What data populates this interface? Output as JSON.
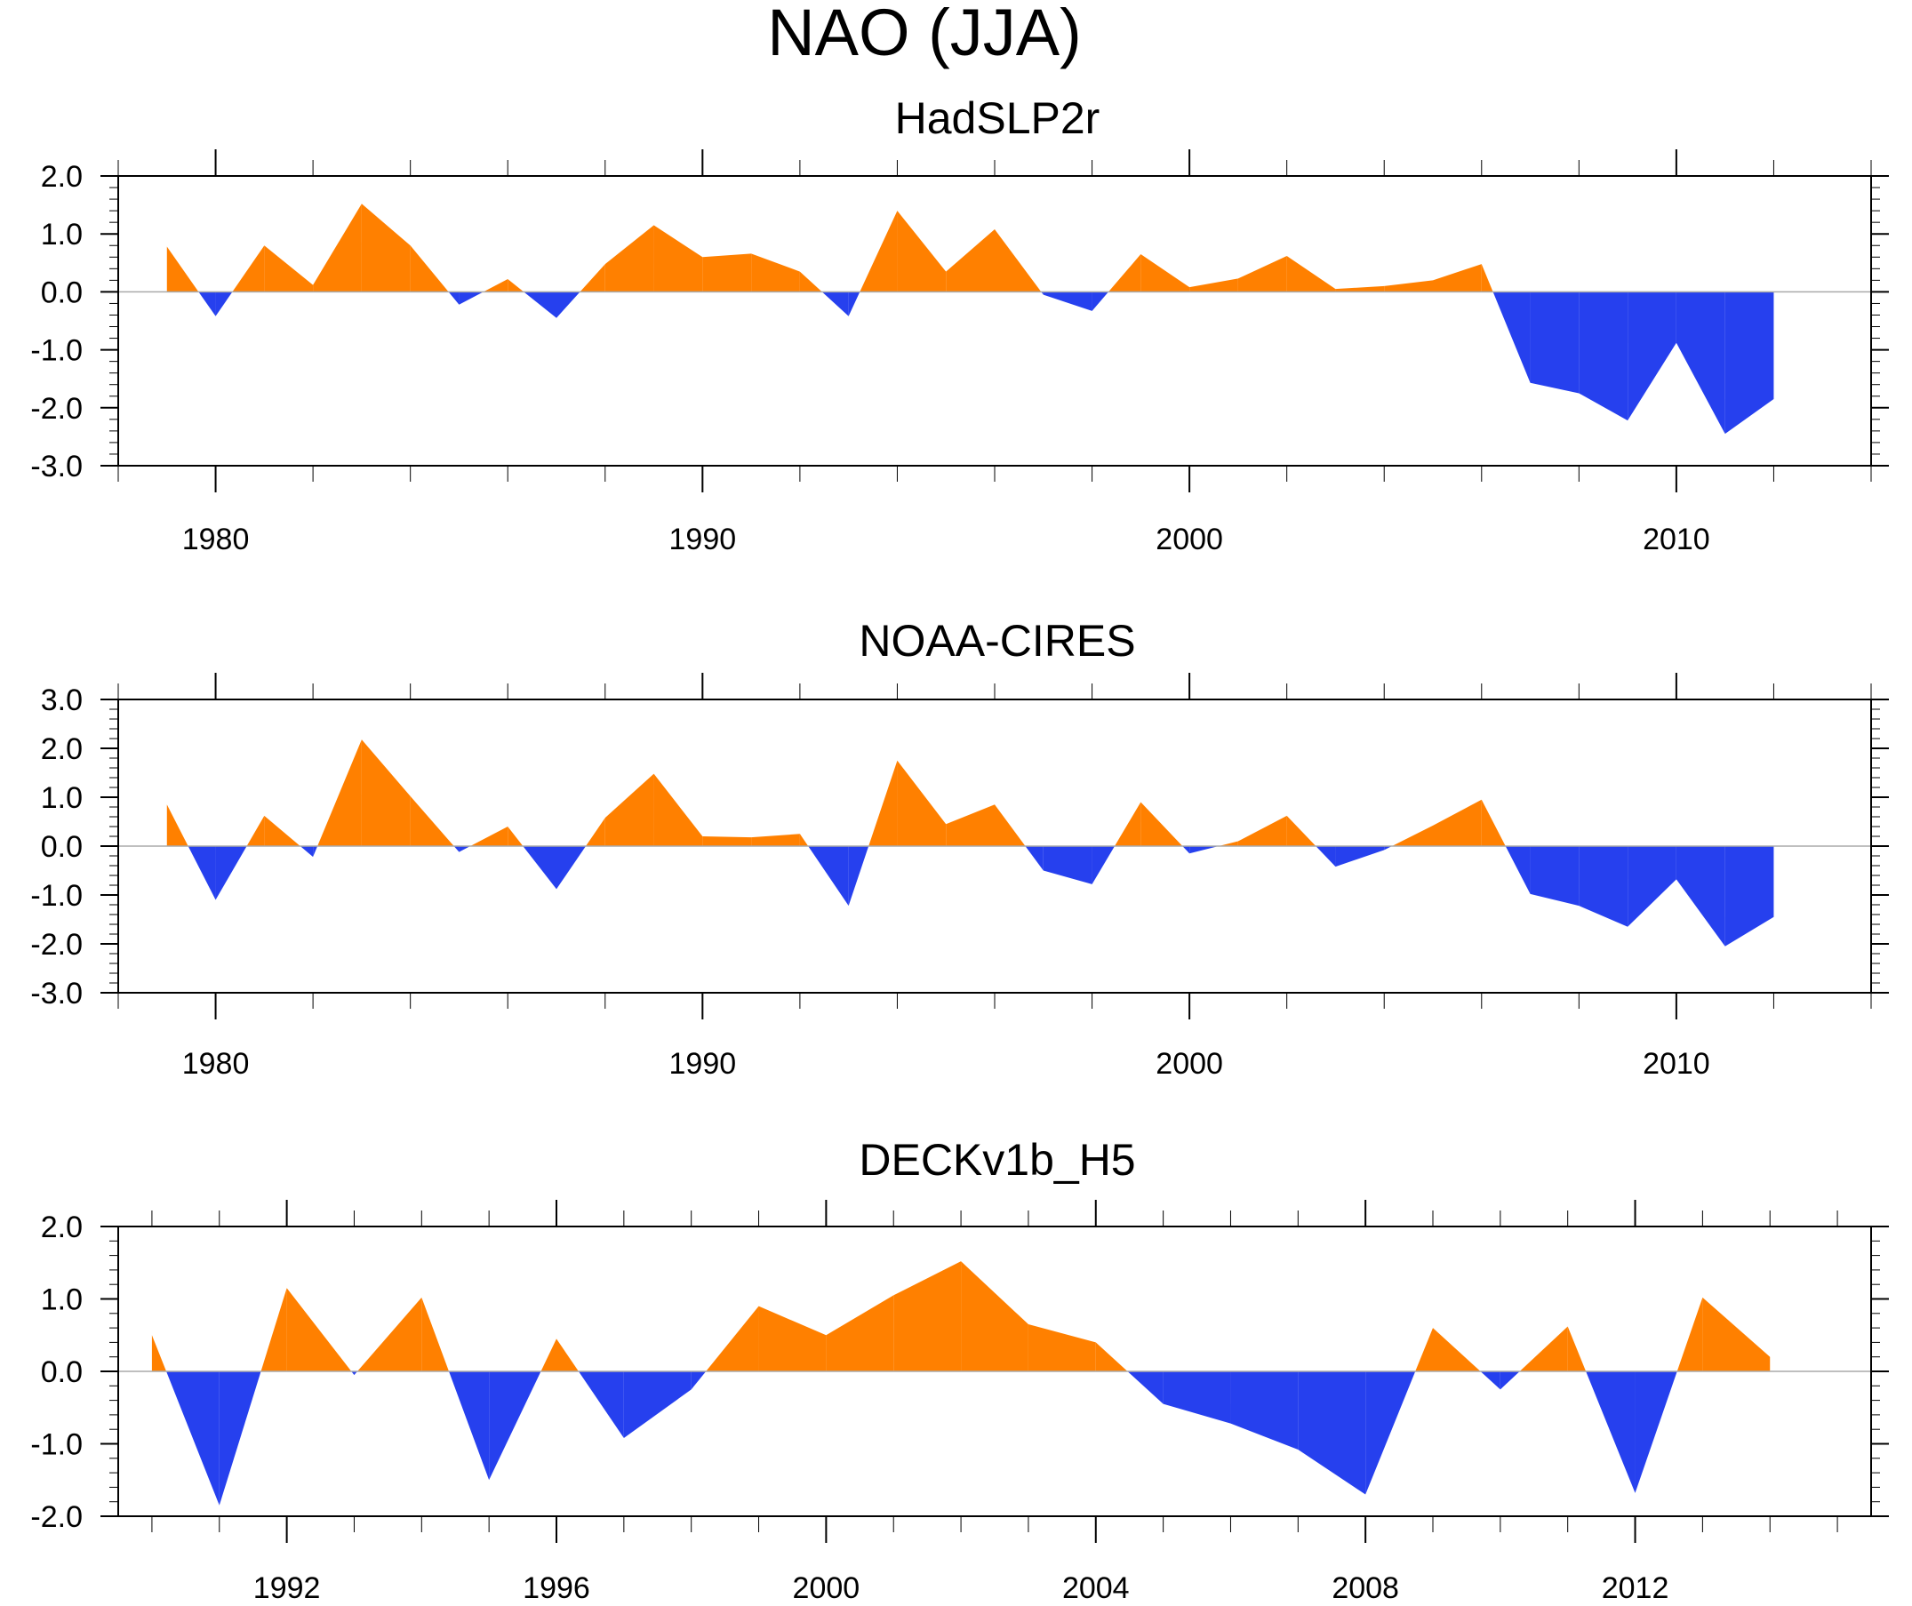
{
  "title": "NAO (JJA)",
  "colors": {
    "positive": "#FF8000",
    "negative": "#2640EE",
    "axis": "#000000",
    "zero_line": "#AAAAAA"
  },
  "chart_data": [
    {
      "type": "area",
      "title": "HadSLP2r",
      "xlim": [
        1978,
        2014
      ],
      "ylim": [
        -3.0,
        2.0
      ],
      "yticks": [
        -3.0,
        -2.0,
        -1.0,
        0.0,
        1.0,
        2.0
      ],
      "ytick_labels": [
        "-3.0",
        "-2.0",
        "-1.0",
        "0.0",
        "1.0",
        "2.0"
      ],
      "xticks": [
        1980,
        1990,
        2000,
        2010
      ],
      "xtick_labels": [
        "1980",
        "1990",
        "2000",
        "2010"
      ],
      "x": [
        1979,
        1980,
        1981,
        1982,
        1983,
        1984,
        1985,
        1986,
        1987,
        1988,
        1989,
        1990,
        1991,
        1992,
        1993,
        1994,
        1995,
        1996,
        1997,
        1998,
        1999,
        2000,
        2001,
        2002,
        2003,
        2004,
        2005,
        2006,
        2007,
        2008,
        2009,
        2010,
        2011,
        2012
      ],
      "values": [
        0.78,
        -0.42,
        0.8,
        0.12,
        1.52,
        0.8,
        -0.22,
        0.22,
        -0.45,
        0.48,
        1.15,
        0.6,
        0.66,
        0.35,
        -0.42,
        1.4,
        0.35,
        1.08,
        -0.05,
        -0.33,
        0.65,
        0.08,
        0.23,
        0.62,
        0.05,
        0.1,
        0.2,
        0.48,
        -1.57,
        -1.75,
        -2.22,
        -0.88,
        -2.45,
        -1.85
      ]
    },
    {
      "type": "area",
      "title": "NOAA-CIRES",
      "xlim": [
        1978,
        2014
      ],
      "ylim": [
        -3.0,
        3.0
      ],
      "yticks": [
        -3.0,
        -2.0,
        -1.0,
        0.0,
        1.0,
        2.0,
        3.0
      ],
      "ytick_labels": [
        "-3.0",
        "-2.0",
        "-1.0",
        "0.0",
        "1.0",
        "2.0",
        "3.0"
      ],
      "xticks": [
        1980,
        1990,
        2000,
        2010
      ],
      "xtick_labels": [
        "1980",
        "1990",
        "2000",
        "2010"
      ],
      "x": [
        1979,
        1980,
        1981,
        1982,
        1983,
        1984,
        1985,
        1986,
        1987,
        1988,
        1989,
        1990,
        1991,
        1992,
        1993,
        1994,
        1995,
        1996,
        1997,
        1998,
        1999,
        2000,
        2001,
        2002,
        2003,
        2004,
        2005,
        2006,
        2007,
        2008,
        2009,
        2010,
        2011,
        2012
      ],
      "values": [
        0.85,
        -1.1,
        0.62,
        -0.22,
        2.18,
        1.02,
        -0.12,
        0.4,
        -0.88,
        0.58,
        1.48,
        0.2,
        0.18,
        0.25,
        -1.22,
        1.75,
        0.45,
        0.85,
        -0.5,
        -0.78,
        0.9,
        -0.15,
        0.1,
        0.62,
        -0.42,
        -0.08,
        0.42,
        0.95,
        -0.98,
        -1.22,
        -1.65,
        -0.68,
        -2.05,
        -1.45
      ]
    },
    {
      "type": "area",
      "title": "DECKv1b_H5",
      "xlim": [
        1989.5,
        2015.5
      ],
      "ylim": [
        -2.0,
        2.0
      ],
      "yticks": [
        -2.0,
        -1.0,
        0.0,
        1.0,
        2.0
      ],
      "ytick_labels": [
        "-2.0",
        "-1.0",
        "0.0",
        "1.0",
        "2.0"
      ],
      "xticks": [
        1992,
        1996,
        2000,
        2004,
        2008,
        2012
      ],
      "xtick_labels": [
        "1992",
        "1996",
        "2000",
        "2004",
        "2008",
        "2012"
      ],
      "x": [
        1990,
        1991,
        1992,
        1993,
        1994,
        1995,
        1996,
        1997,
        1998,
        1999,
        2000,
        2001,
        2002,
        2003,
        2004,
        2005,
        2006,
        2007,
        2008,
        2009,
        2010,
        2011,
        2012,
        2013,
        2014
      ],
      "values": [
        0.5,
        -1.85,
        1.15,
        -0.05,
        1.02,
        -1.5,
        0.45,
        -0.92,
        -0.25,
        0.9,
        0.5,
        1.05,
        1.52,
        0.65,
        0.4,
        -0.45,
        -0.72,
        -1.08,
        -1.7,
        0.6,
        -0.25,
        0.62,
        -1.68,
        1.02,
        0.2
      ]
    }
  ]
}
